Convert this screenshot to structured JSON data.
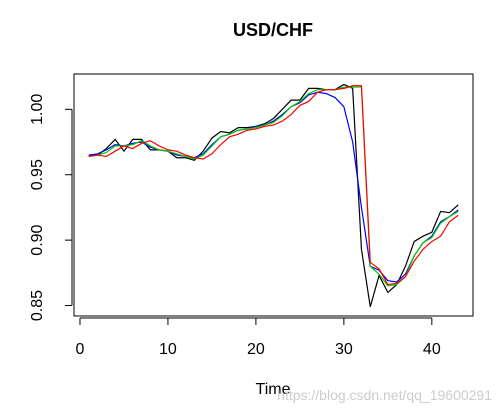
{
  "chart_data": {
    "type": "line",
    "title": "USD/CHF",
    "x_label": "Time",
    "watermark": "https://blog.csdn.net/qq_19600291",
    "x": [
      1,
      2,
      3,
      4,
      5,
      6,
      7,
      8,
      9,
      10,
      11,
      12,
      13,
      14,
      15,
      16,
      17,
      18,
      19,
      20,
      21,
      22,
      23,
      24,
      25,
      26,
      27,
      28,
      29,
      30,
      31,
      32,
      33,
      34,
      35,
      36,
      37,
      38,
      39,
      40,
      41,
      42,
      43
    ],
    "xlim": [
      -0.68,
      44.68
    ],
    "xticks": [
      0,
      10,
      20,
      30,
      40
    ],
    "ylim": [
      0.842,
      1.027
    ],
    "yticks": [
      0.85,
      {
        "value": 0.9,
        "label": "0.90"
      },
      0.95,
      {
        "value": 1,
        "label": "1.00"
      }
    ],
    "series": [
      {
        "color": "#000000",
        "values": [
          0.965,
          0.965,
          0.97,
          0.977,
          0.968,
          0.977,
          0.977,
          0.969,
          0.969,
          0.968,
          0.963,
          0.963,
          0.961,
          0.968,
          0.978,
          0.983,
          0.982,
          0.986,
          0.986,
          0.987,
          0.989,
          0.993,
          1.0,
          1.007,
          1.007,
          1.016,
          1.016,
          1.015,
          1.015,
          1.019,
          1.016,
          0.893,
          0.849,
          0.873,
          0.86,
          0.866,
          0.88,
          0.899,
          0.903,
          0.906,
          0.922,
          0.921,
          0.927
        ]
      },
      {
        "color": "#0000ff",
        "values": [
          0.965,
          0.966,
          0.969,
          0.973,
          0.972,
          0.974,
          0.975,
          0.971,
          0.969,
          0.968,
          0.965,
          0.964,
          0.963,
          0.966,
          0.973,
          0.979,
          0.981,
          0.984,
          0.985,
          0.987,
          0.988,
          0.991,
          0.996,
          1.002,
          1.005,
          1.011,
          1.013,
          1.012,
          1.009,
          1.002,
          0.975,
          0.925,
          0.88,
          0.877,
          0.869,
          0.868,
          0.874,
          0.888,
          0.898,
          0.903,
          0.914,
          0.918,
          0.923
        ]
      },
      {
        "color": "#00cd00",
        "values": [
          0.964,
          0.965,
          0.967,
          0.972,
          0.972,
          0.973,
          0.976,
          0.972,
          0.969,
          0.968,
          0.966,
          0.964,
          0.962,
          0.965,
          0.972,
          0.979,
          0.981,
          0.984,
          0.985,
          0.986,
          0.988,
          0.99,
          0.995,
          1.002,
          1.006,
          1.012,
          1.015,
          1.015,
          1.015,
          1.017,
          1.017,
          1.017,
          0.88,
          0.874,
          0.865,
          0.866,
          0.872,
          0.888,
          0.898,
          0.902,
          0.913,
          0.918,
          0.922
        ]
      },
      {
        "color": "#ff0000",
        "values": [
          0.964,
          0.965,
          0.964,
          0.968,
          0.972,
          0.97,
          0.974,
          0.976,
          0.972,
          0.969,
          0.968,
          0.965,
          0.963,
          0.962,
          0.966,
          0.973,
          0.979,
          0.981,
          0.984,
          0.985,
          0.987,
          0.988,
          0.991,
          0.996,
          1.003,
          1.006,
          1.013,
          1.015,
          1.015,
          1.016,
          1.018,
          1.018,
          0.883,
          0.878,
          0.866,
          0.867,
          0.872,
          0.884,
          0.893,
          0.899,
          0.903,
          0.914,
          0.919
        ]
      }
    ]
  }
}
